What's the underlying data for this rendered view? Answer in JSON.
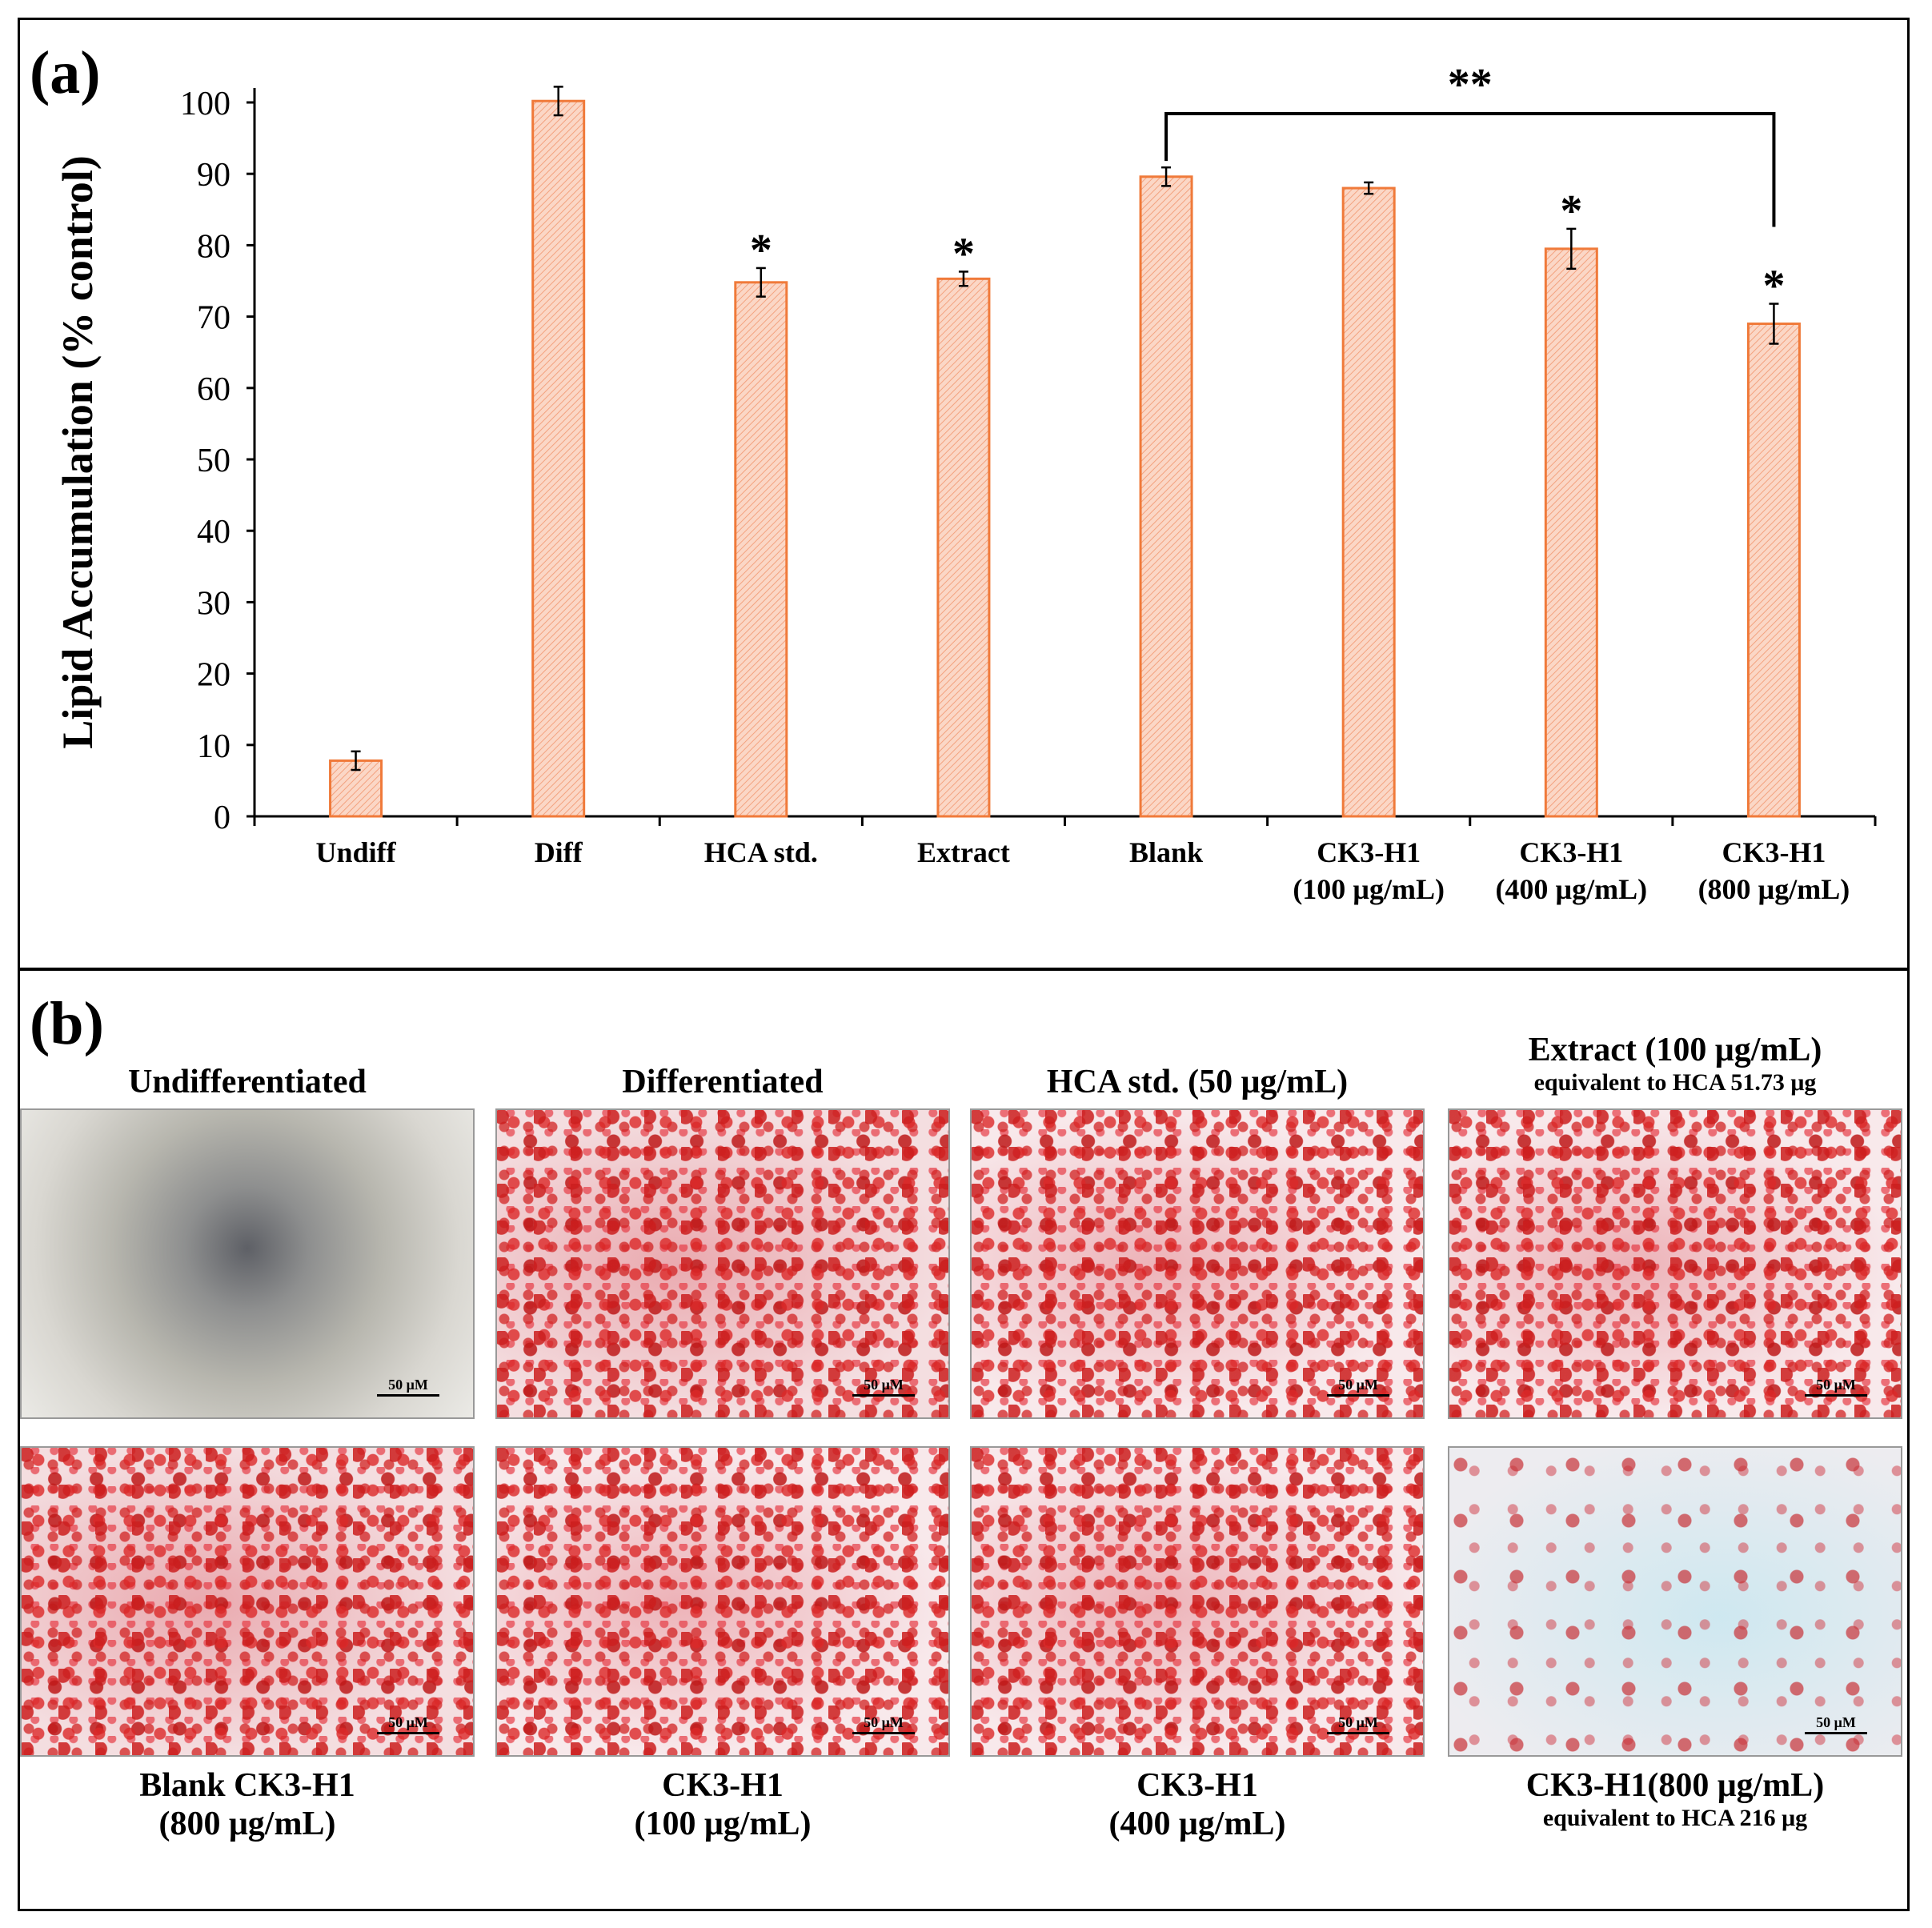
{
  "panel_a": {
    "label": "(a)"
  },
  "panel_b": {
    "label": "(b)"
  },
  "chart_data": {
    "type": "bar",
    "title": "",
    "xlabel": "",
    "ylabel": "Lipid Accumulation (% control)",
    "ylim": [
      0,
      100
    ],
    "yticks": [
      0,
      10,
      20,
      30,
      40,
      50,
      60,
      70,
      80,
      90,
      100
    ],
    "categories": [
      [
        "Undiff"
      ],
      [
        "Diff"
      ],
      [
        "HCA std."
      ],
      [
        "Extract"
      ],
      [
        "Blank"
      ],
      [
        "CK3-H1",
        "(100 µg/mL)"
      ],
      [
        "CK3-H1",
        "(400 µg/mL)"
      ],
      [
        "CK3-H1",
        "(800 µg/mL)"
      ]
    ],
    "values": [
      7.8,
      100.2,
      74.8,
      75.3,
      89.6,
      88.0,
      79.5,
      69.0
    ],
    "errors": [
      1.3,
      2.0,
      2.0,
      1.0,
      1.3,
      0.8,
      2.8,
      2.8
    ],
    "significance": [
      "",
      "",
      "*",
      "*",
      "",
      "",
      "*",
      "*"
    ],
    "comparison": {
      "from_index": 4,
      "to_index": 7,
      "label": "**"
    },
    "bar_color": "#F8C9B4",
    "bar_edge_color": "#F07A3A",
    "grid": false
  },
  "micrographs": [
    {
      "title": "Undifferentiated",
      "subtitle": "",
      "caption": "",
      "caption_sub": "",
      "scale": "50 μM",
      "style": "undiff"
    },
    {
      "title": "Differentiated",
      "subtitle": "",
      "caption": "",
      "caption_sub": "",
      "scale": "50 μM",
      "style": "dense"
    },
    {
      "title": "HCA std. (50 μg/mL)",
      "subtitle": "",
      "caption": "",
      "caption_sub": "",
      "scale": "50 μM",
      "style": "red"
    },
    {
      "title": "Extract (100 μg/mL)",
      "subtitle": "equivalent to HCA 51.73 μg",
      "caption": "",
      "caption_sub": "",
      "scale": "50 μM",
      "style": "red"
    },
    {
      "title": "",
      "subtitle": "",
      "caption": "Blank CK3-H1",
      "caption_sub": "(800 μg/mL)",
      "scale": "50 μM",
      "style": "dense"
    },
    {
      "title": "",
      "subtitle": "",
      "caption": "CK3-H1",
      "caption_sub": "(100 μg/mL)",
      "scale": "50 μM",
      "style": "red"
    },
    {
      "title": "",
      "subtitle": "",
      "caption": "CK3-H1",
      "caption_sub": "(400 μg/mL)",
      "scale": "50 μM",
      "style": "red"
    },
    {
      "title": "",
      "subtitle": "",
      "caption": "CK3-H1(800 μg/mL)",
      "caption_sub": "equivalent to HCA 216 μg",
      "scale": "50 μM",
      "style": "light"
    }
  ]
}
